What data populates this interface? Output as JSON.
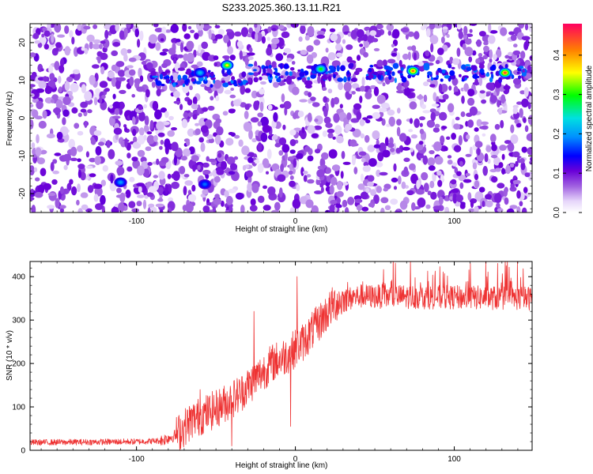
{
  "title": "S233.2025.360.13.11.R21",
  "chart_data": [
    {
      "type": "heatmap",
      "name": "spectrogram",
      "xlabel": "Height of straight line (km)",
      "ylabel": "Frequency (Hz)",
      "xlim": [
        -167,
        149
      ],
      "ylim": [
        -25,
        25
      ],
      "xticks": [
        -100,
        0,
        100
      ],
      "xtick_labels": [
        "-100",
        "0",
        "100"
      ],
      "yticks": [
        -20,
        -10,
        0,
        10,
        20
      ],
      "ytick_labels": [
        "-20",
        "-10",
        "0",
        "10",
        "20"
      ],
      "signal_band_hz": 12,
      "colorbar": {
        "label": "Normalized spectral amplitude",
        "range": [
          0,
          0.48
        ],
        "ticks": [
          0,
          0.1,
          0.2,
          0.3,
          0.4
        ],
        "tick_labels": [
          "0.0",
          "0.1",
          "0.2",
          "0.3",
          "0.4"
        ]
      },
      "hotspots": [
        {
          "x": -43,
          "y": 14,
          "v": 0.36
        },
        {
          "x": 16,
          "y": 13,
          "v": 0.3
        },
        {
          "x": 74,
          "y": 12.5,
          "v": 0.42
        },
        {
          "x": 132,
          "y": 12,
          "v": 0.44
        },
        {
          "x": -60,
          "y": 12,
          "v": 0.22
        },
        {
          "x": -110,
          "y": -17,
          "v": 0.2
        },
        {
          "x": -57,
          "y": -17.5,
          "v": 0.18
        }
      ]
    },
    {
      "type": "line",
      "name": "snr",
      "xlabel": "Height of straight line (km)",
      "ylabel": "SNR (10 * v/v)",
      "xlim": [
        -167,
        149
      ],
      "ylim": [
        0,
        435
      ],
      "xticks": [
        -100,
        0,
        100
      ],
      "xtick_labels": [
        "-100",
        "0",
        "100"
      ],
      "yticks": [
        0,
        100,
        200,
        300,
        400
      ],
      "ytick_labels": [
        "0",
        "100",
        "200",
        "300",
        "400"
      ],
      "color": "#ee3333",
      "profile": [
        {
          "x": -167,
          "y": 18
        },
        {
          "x": -100,
          "y": 20
        },
        {
          "x": -85,
          "y": 22
        },
        {
          "x": -75,
          "y": 35
        },
        {
          "x": -65,
          "y": 70
        },
        {
          "x": -50,
          "y": 95
        },
        {
          "x": -35,
          "y": 130
        },
        {
          "x": -25,
          "y": 165
        },
        {
          "x": -15,
          "y": 200
        },
        {
          "x": -5,
          "y": 220
        },
        {
          "x": 5,
          "y": 250
        },
        {
          "x": 15,
          "y": 295
        },
        {
          "x": 25,
          "y": 340
        },
        {
          "x": 40,
          "y": 355
        },
        {
          "x": 149,
          "y": 350
        }
      ],
      "spikes": [
        {
          "x": -26,
          "y": 320
        },
        {
          "x": 1,
          "y": 400
        },
        {
          "x": -60,
          "y": 140
        },
        {
          "x": -3,
          "y": 55
        },
        {
          "x": -40,
          "y": 10
        }
      ]
    }
  ]
}
